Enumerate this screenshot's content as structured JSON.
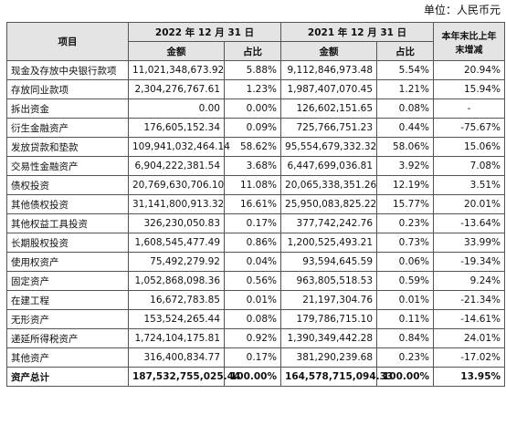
{
  "unit": "单位：人民币元",
  "header": {
    "item": "项目",
    "period_2022": "2022 年 12 月 31 日",
    "period_2021": "2021 年 12 月 31 日",
    "change": "本年末比上年末增减",
    "columns": [
      "金额",
      "占比",
      "金额",
      "占比"
    ]
  },
  "rows": [
    [
      "现金及存放中央银行款项",
      "11,021,348,673.92",
      "5.88%",
      "9,112,846,973.48",
      "5.54%",
      "20.94%"
    ],
    [
      "存放同业款项",
      "2,304,276,767.61",
      "1.23%",
      "1,987,407,070.45",
      "1.21%",
      "15.94%"
    ],
    [
      "拆出资金",
      "0.00",
      "0.00%",
      "126,602,151.65",
      "0.08%",
      "-"
    ],
    [
      "衍生金融资产",
      "176,605,152.34",
      "0.09%",
      "725,766,751.23",
      "0.44%",
      "-75.67%"
    ],
    [
      "发放贷款和垫款",
      "109,941,032,464.14",
      "58.62%",
      "95,554,679,332.32",
      "58.06%",
      "15.06%"
    ],
    [
      "交易性金融资产",
      "6,904,222,381.54",
      "3.68%",
      "6,447,699,036.81",
      "3.92%",
      "7.08%"
    ],
    [
      "债权投资",
      "20,769,630,706.10",
      "11.08%",
      "20,065,338,351.26",
      "12.19%",
      "3.51%"
    ],
    [
      "其他债权投资",
      "31,141,800,913.32",
      "16.61%",
      "25,950,083,825.22",
      "15.77%",
      "20.01%"
    ],
    [
      "其他权益工具投资",
      "326,230,050.83",
      "0.17%",
      "377,742,242.76",
      "0.23%",
      "-13.64%"
    ],
    [
      "长期股权投资",
      "1,608,545,477.49",
      "0.86%",
      "1,200,525,493.21",
      "0.73%",
      "33.99%"
    ],
    [
      "使用权资产",
      "75,492,279.92",
      "0.04%",
      "93,594,645.59",
      "0.06%",
      "-19.34%"
    ],
    [
      "固定资产",
      "1,052,868,098.36",
      "0.56%",
      "963,805,518.53",
      "0.59%",
      "9.24%"
    ],
    [
      "在建工程",
      "16,672,783.85",
      "0.01%",
      "21,197,304.76",
      "0.01%",
      "-21.34%"
    ],
    [
      "无形资产",
      "153,524,265.44",
      "0.08%",
      "179,786,715.10",
      "0.11%",
      "-14.61%"
    ],
    [
      "递延所得税资产",
      "1,724,104,175.81",
      "0.92%",
      "1,390,349,442.28",
      "0.84%",
      "24.01%"
    ],
    [
      "其他资产",
      "316,400,834.77",
      "0.17%",
      "381,290,239.68",
      "0.23%",
      "-17.02%"
    ]
  ],
  "total": [
    "资产总计",
    "187,532,755,025.44",
    "100.00%",
    "164,578,715,094.33",
    "100.00%",
    "13.95%"
  ]
}
